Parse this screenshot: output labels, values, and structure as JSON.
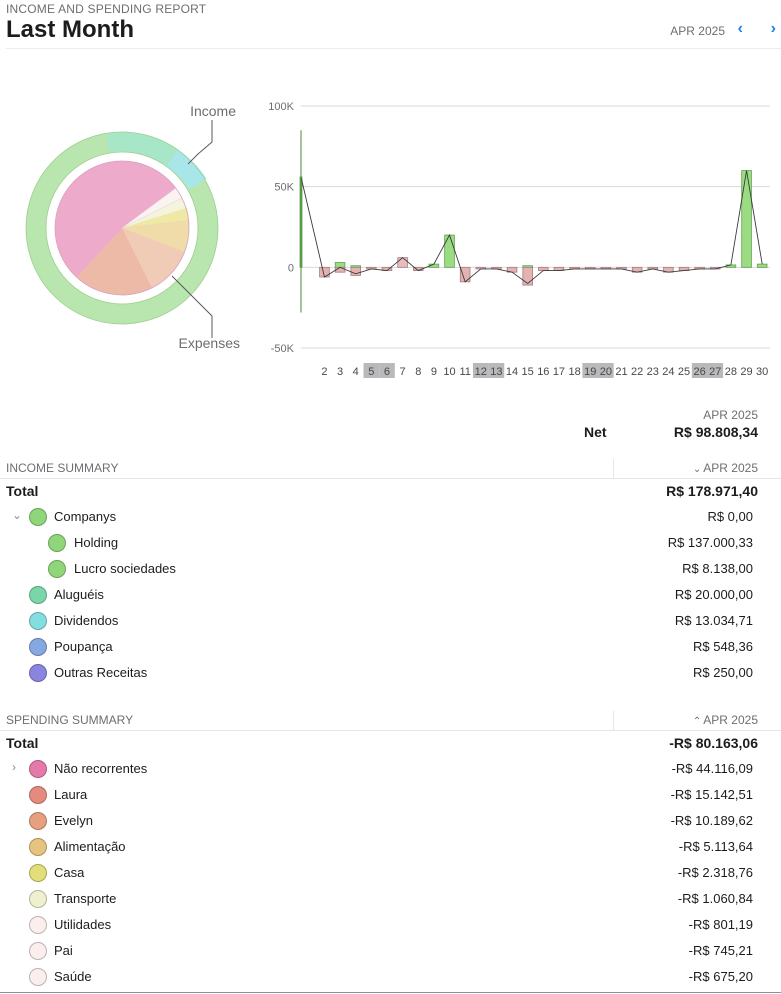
{
  "header": {
    "report_label": "INCOME AND SPENDING REPORT",
    "title": "Last Month",
    "period": "APR 2025",
    "prev_icon": "chevron-left-icon",
    "next_icon": "chevron-right-icon",
    "accent_color": "#1a7ff0"
  },
  "donut": {
    "income_label": "Income",
    "expenses_label": "Expenses"
  },
  "chart_data": {
    "type": "bar",
    "yticks": [
      "100K",
      "50K",
      "0",
      "-50K"
    ],
    "ylim": [
      -50000,
      100000
    ],
    "x": [
      1,
      2,
      3,
      4,
      5,
      6,
      7,
      8,
      9,
      10,
      11,
      12,
      13,
      14,
      15,
      16,
      17,
      18,
      19,
      20,
      21,
      22,
      23,
      24,
      25,
      26,
      27,
      28,
      29,
      30
    ],
    "xtick_labels": [
      "2",
      "3",
      "4",
      "5",
      "6",
      "7",
      "8",
      "9",
      "10",
      "11",
      "12",
      "13",
      "14",
      "15",
      "16",
      "17",
      "18",
      "19",
      "20",
      "21",
      "22",
      "23",
      "24",
      "25",
      "26",
      "27",
      "28",
      "29",
      "30"
    ],
    "highlighted_days": [
      5,
      6,
      12,
      13,
      19,
      20,
      26,
      27
    ],
    "series": [
      {
        "kind": "income",
        "color": "#9bdc82",
        "values": [
          56000,
          0,
          3000,
          1000,
          0,
          0,
          0,
          0,
          2000,
          20000,
          0,
          0,
          0,
          0,
          1000,
          0,
          0,
          0,
          0,
          0,
          0,
          0,
          0,
          0,
          0,
          0,
          0,
          1500,
          60000,
          2000
        ]
      },
      {
        "kind": "spending",
        "color": "#e3b2b2",
        "values": [
          0,
          -6000,
          -3000,
          -5000,
          -1000,
          -2000,
          6000,
          -2000,
          0,
          0,
          -9000,
          -1000,
          -1000,
          -3000,
          -11000,
          -2000,
          -2000,
          -1000,
          -1000,
          -1000,
          -1000,
          -3000,
          -1000,
          -3000,
          -2000,
          -1000,
          -1000,
          0,
          0,
          0
        ]
      }
    ]
  },
  "net": {
    "period": "APR 2025",
    "label": "Net",
    "value": "R$ 98.808,34"
  },
  "income": {
    "title": "INCOME SUMMARY",
    "period": "APR 2025",
    "total_label": "Total",
    "total_value": "R$ 178.971,40",
    "rows": [
      {
        "name": "Companys",
        "value": "R$ 0,00",
        "color": "#8fd67a"
      },
      {
        "name": "Holding",
        "value": "R$ 137.000,33",
        "color": "#8fd67a"
      },
      {
        "name": "Lucro sociedades",
        "value": "R$ 8.138,00",
        "color": "#8fd67a"
      },
      {
        "name": "Aluguéis",
        "value": "R$ 20.000,00",
        "color": "#7ad6a8"
      },
      {
        "name": "Dividendos",
        "value": "R$ 13.034,71",
        "color": "#84dde0"
      },
      {
        "name": "Poupança",
        "value": "R$ 548,36",
        "color": "#86a8e0"
      },
      {
        "name": "Outras Receitas",
        "value": "R$ 250,00",
        "color": "#8a86e0"
      }
    ]
  },
  "spending": {
    "title": "SPENDING SUMMARY",
    "period": "APR 2025",
    "total_label": "Total",
    "total_value": "-R$ 80.163,06",
    "rows": [
      {
        "name": "Não recorrentes",
        "value": "-R$ 44.116,09",
        "color": "#e679ab"
      },
      {
        "name": "Laura",
        "value": "-R$ 15.142,51",
        "color": "#e68a80"
      },
      {
        "name": "Evelyn",
        "value": "-R$ 10.189,62",
        "color": "#e6a07f"
      },
      {
        "name": "Alimentação",
        "value": "-R$ 5.113,64",
        "color": "#e6c47f"
      },
      {
        "name": "Casa",
        "value": "-R$ 2.318,76",
        "color": "#e2de7a"
      },
      {
        "name": "Transporte",
        "value": "-R$ 1.060,84",
        "color": "#eef0cf"
      },
      {
        "name": "Utilidades",
        "value": "-R$ 801,19",
        "color": "#fbeeed"
      },
      {
        "name": "Pai",
        "value": "-R$ 745,21",
        "color": "#fbeeed"
      },
      {
        "name": "Saúde",
        "value": "-R$ 675,20",
        "color": "#fbeeed"
      }
    ]
  }
}
